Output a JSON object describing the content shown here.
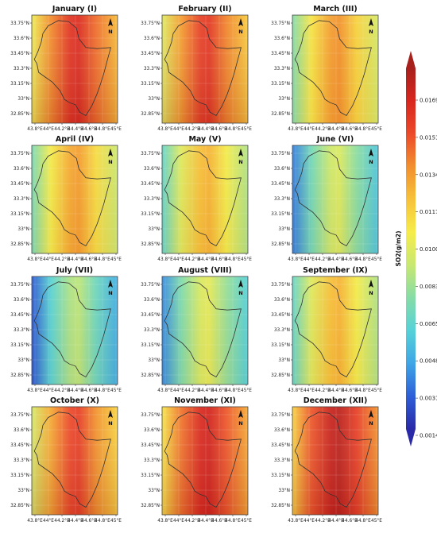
{
  "panels": [
    {
      "title": "January (I)",
      "level": 0.85,
      "gradient": "west-east"
    },
    {
      "title": "February (II)",
      "level": 0.82,
      "gradient": "west-east"
    },
    {
      "title": "March (III)",
      "level": 0.68,
      "gradient": "west-east"
    },
    {
      "title": "April (IV)",
      "level": 0.66,
      "gradient": "west-east"
    },
    {
      "title": "May (V)",
      "level": 0.62,
      "gradient": "west-east"
    },
    {
      "title": "June (VI)",
      "level": 0.45,
      "gradient": "west-east"
    },
    {
      "title": "July (VII)",
      "level": 0.4,
      "gradient": "west-east"
    },
    {
      "title": "August (VIII)",
      "level": 0.47,
      "gradient": "west-east"
    },
    {
      "title": "September (IX)",
      "level": 0.62,
      "gradient": "west-east"
    },
    {
      "title": "October (X)",
      "level": 0.8,
      "gradient": "west-east"
    },
    {
      "title": "November (XI)",
      "level": 0.88,
      "gradient": "west-east"
    },
    {
      "title": "December (XII)",
      "level": 0.92,
      "gradient": "west-east"
    }
  ],
  "north_arrow_label": "N",
  "lat_ticks": [
    "33.75°N",
    "33.6°N",
    "33.45°N",
    "33.3°N",
    "33.15°N",
    "33°N",
    "32.85°N"
  ],
  "lon_ticks": [
    "43.8°E",
    "44°E",
    "44.2°E",
    "44.4°E",
    "44.6°E",
    "44.8°E",
    "45°E"
  ],
  "colorbar": {
    "label": "SO2(g/m2)",
    "ticks": [
      "0.01690",
      "0.01518",
      "0.01346",
      "0.01174",
      "0.01002",
      "0.00830",
      "0.00658",
      "0.00486",
      "0.00314",
      "0.00142"
    ],
    "colors": [
      "#2a2aa8",
      "#2e5fd8",
      "#3ea6e6",
      "#56d2d8",
      "#86dca6",
      "#c8e872",
      "#f6ec4a",
      "#f7c23a",
      "#f2902e",
      "#ec4a2a",
      "#d8261e",
      "#a8201c"
    ]
  }
}
